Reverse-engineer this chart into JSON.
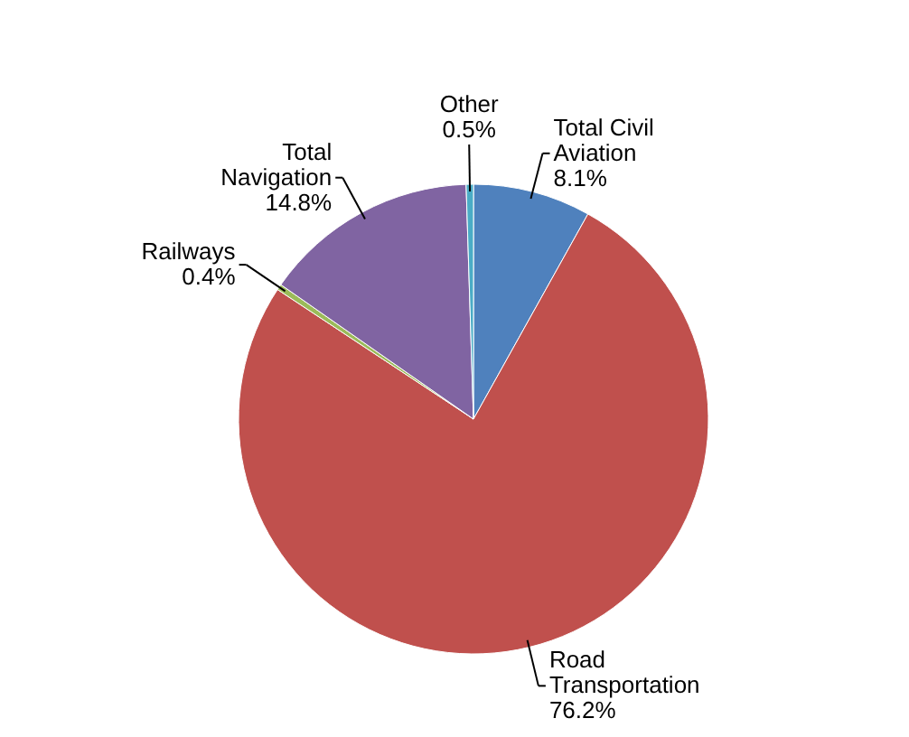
{
  "chart_data": {
    "type": "pie",
    "categories": [
      "Total Civil Aviation",
      "Road Transportation",
      "Railways",
      "Total Navigation",
      "Other"
    ],
    "values": [
      8.1,
      76.2,
      0.4,
      14.8,
      0.5
    ],
    "value_labels": [
      "8.1%",
      "76.2%",
      "0.4%",
      "14.8%",
      "0.5%"
    ],
    "colors": [
      "#4f81bd",
      "#c0504d",
      "#9bbb59",
      "#8064a2",
      "#4bacc6"
    ]
  }
}
